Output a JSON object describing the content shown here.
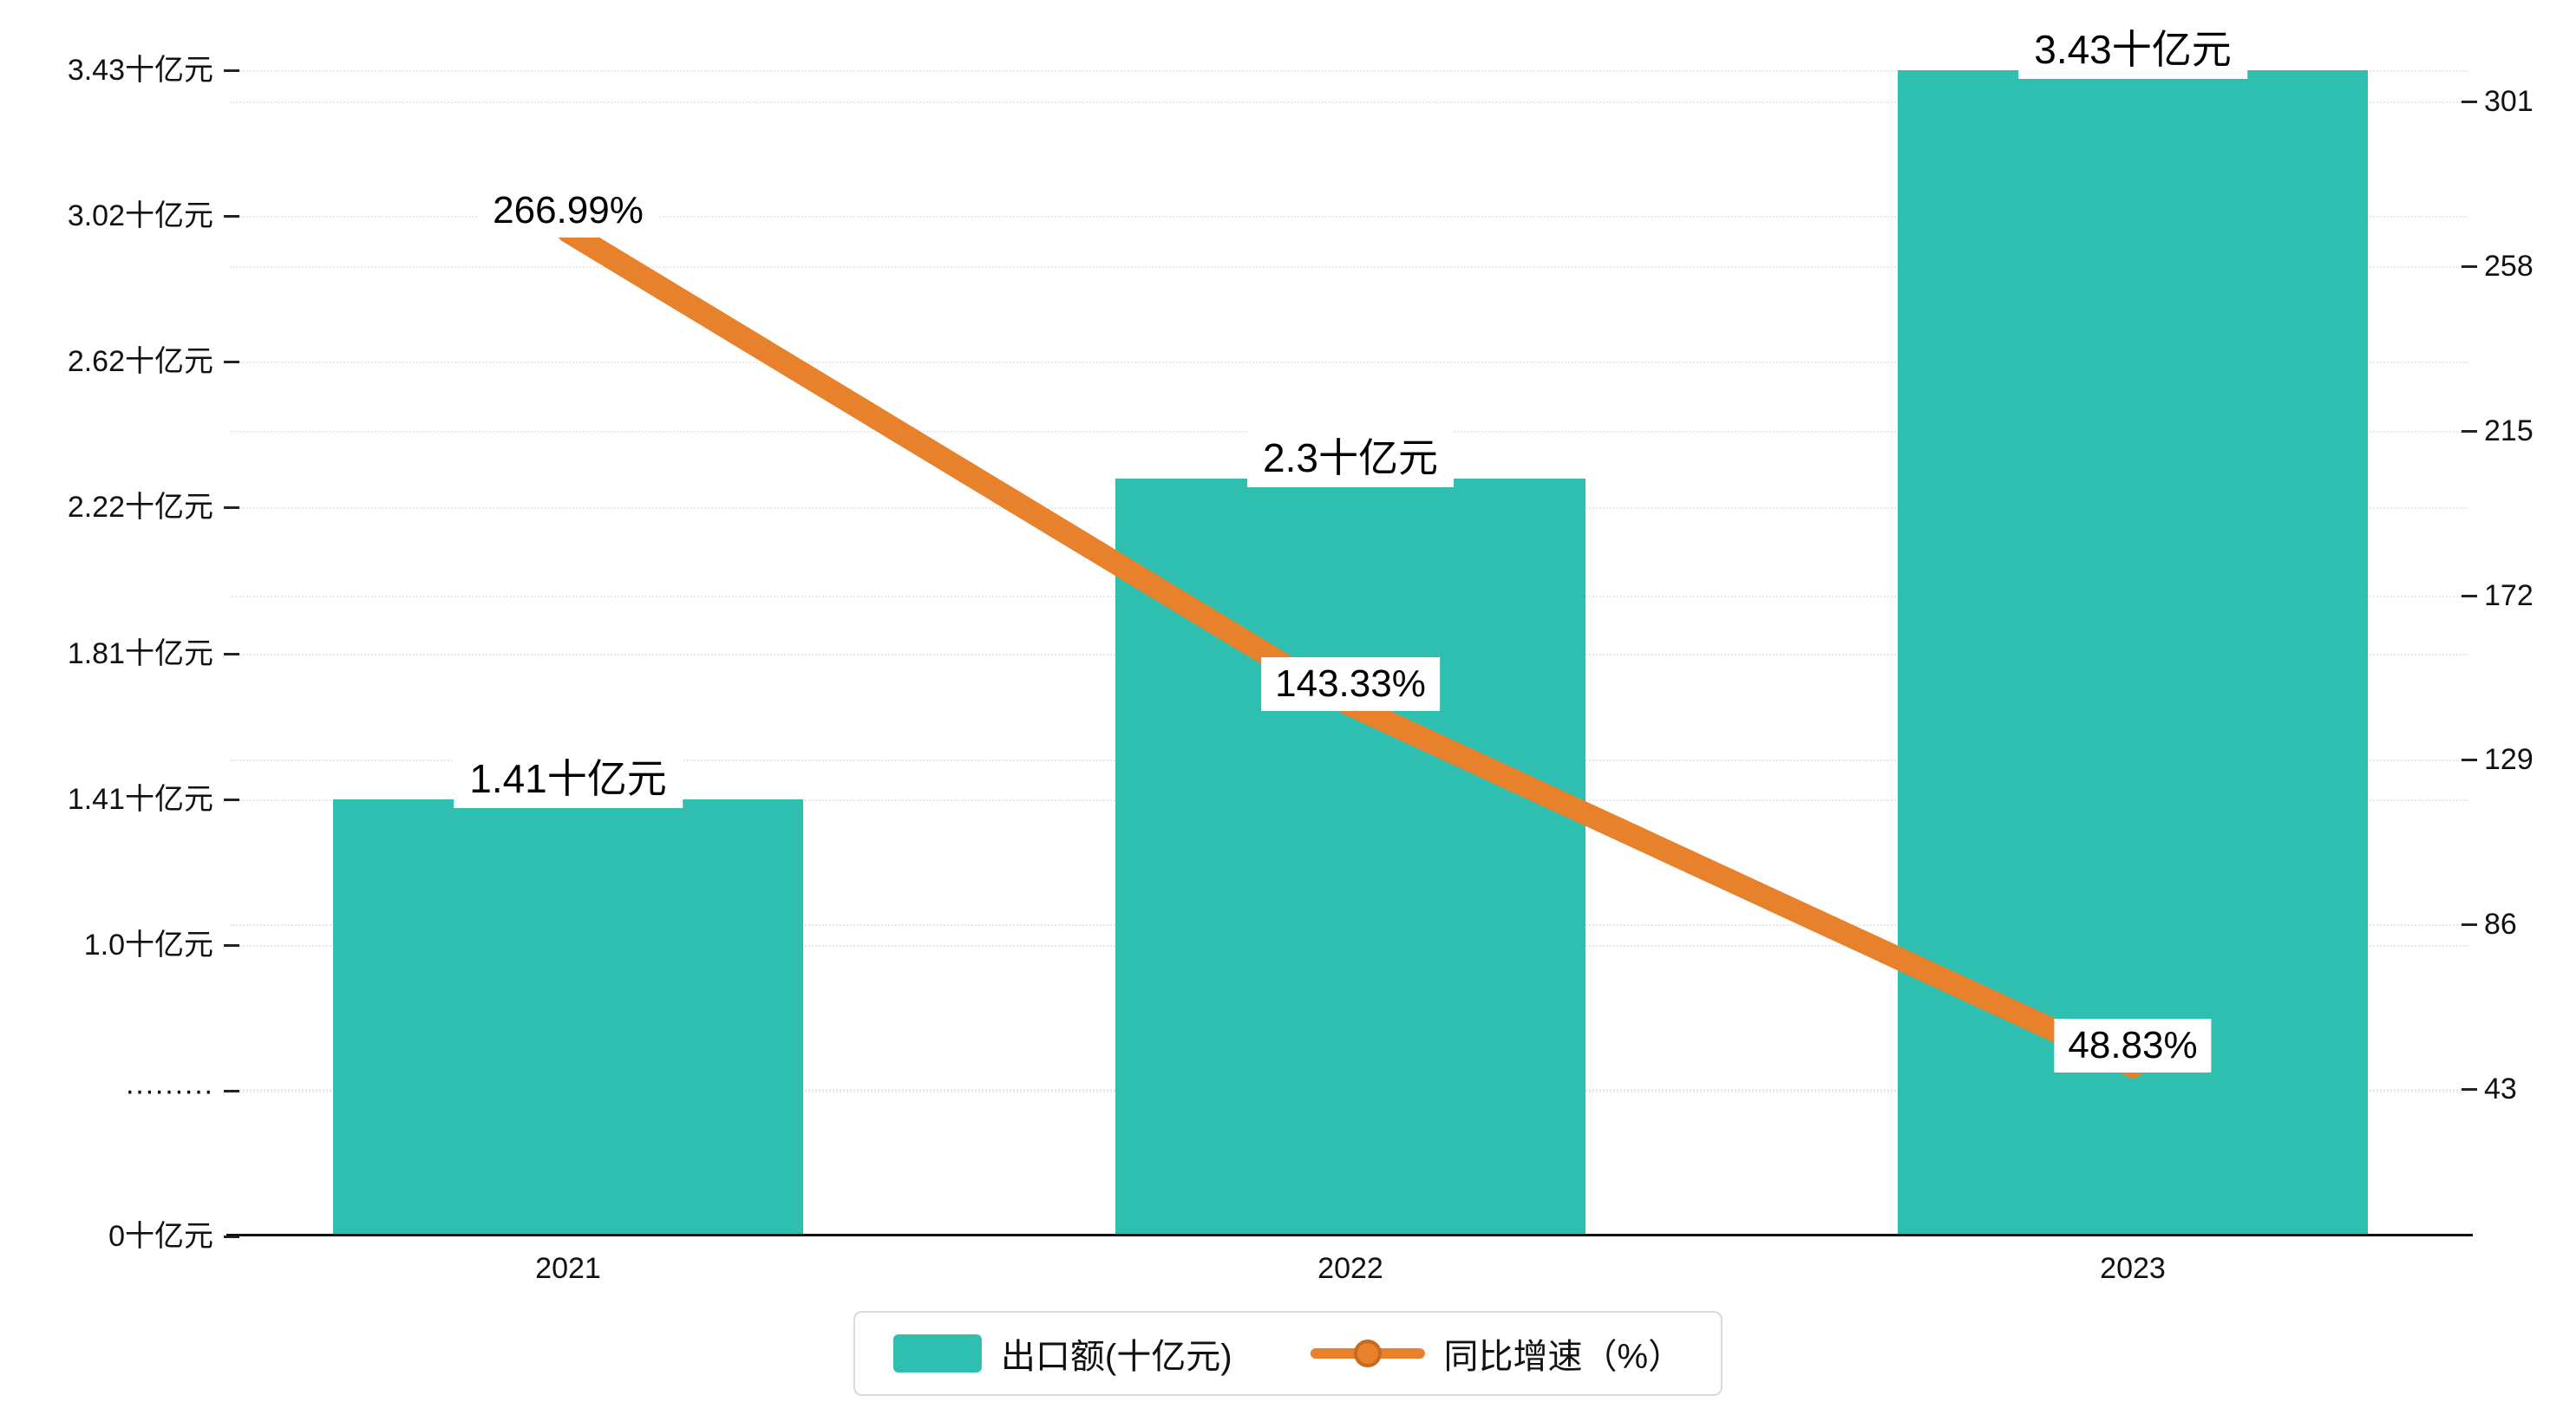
{
  "colors": {
    "bar": "#2FBFB0",
    "line": "#E8812B",
    "grid": "#e9e9e9",
    "axis": "#111111",
    "legend_border": "#d9d9d9"
  },
  "chart_data": {
    "type": "combo-bar-line",
    "categories": [
      "2021",
      "2022",
      "2023"
    ],
    "series": [
      {
        "name": "出口额(十亿元)",
        "type": "bar",
        "axis": "left",
        "color": "#2FBFB0",
        "values": [
          1.41,
          2.3,
          3.43
        ],
        "value_labels": [
          "1.41十亿元",
          "2.3十亿元",
          "3.43十亿元"
        ]
      },
      {
        "name": "同比增速（%）",
        "type": "line",
        "axis": "right",
        "color": "#E8812B",
        "values": [
          266.99,
          143.33,
          48.83
        ],
        "value_labels": [
          "266.99%",
          "143.33%",
          "48.83%"
        ]
      }
    ],
    "left_axis": {
      "tick_labels": [
        "3.43十亿元",
        "3.02十亿元",
        "2.62十亿元",
        "2.22十亿元",
        "1.81十亿元",
        "1.41十亿元",
        "1.0十亿元",
        "·········",
        "0十亿元"
      ],
      "tick_values": [
        3.43,
        3.02,
        2.62,
        2.22,
        1.81,
        1.41,
        1.0,
        null,
        0
      ],
      "has_break": true
    },
    "right_axis": {
      "tick_labels": [
        "301",
        "258",
        "215",
        "172",
        "129",
        "86",
        "43"
      ],
      "tick_values": [
        301,
        258,
        215,
        172,
        129,
        86,
        43
      ]
    },
    "grid": true,
    "legend_position": "bottom"
  }
}
